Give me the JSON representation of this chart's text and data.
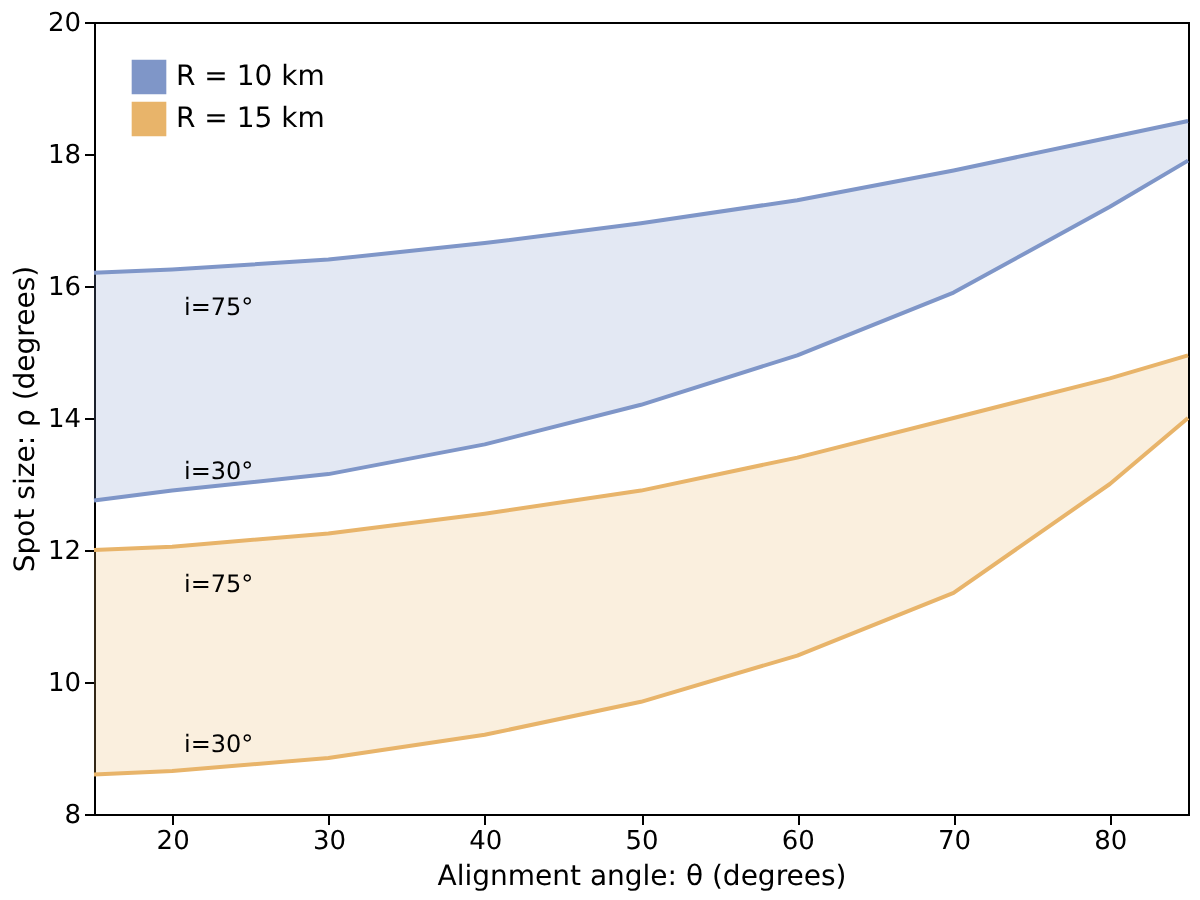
{
  "chart_data": {
    "type": "line",
    "xlabel": "Alignment angle: θ (degrees)",
    "ylabel": "Spot size: ρ (degrees)",
    "x": [
      15,
      20,
      30,
      40,
      50,
      60,
      70,
      80,
      85
    ],
    "series": [
      {
        "name": "R = 10 km",
        "color": "#7f96c8",
        "values": [
          16.2,
          16.25,
          16.4,
          16.65,
          16.95,
          17.3,
          17.75,
          18.25,
          18.5
        ],
        "lower": [
          12.75,
          12.9,
          13.15,
          13.6,
          14.2,
          14.95,
          15.9,
          17.2,
          17.9
        ],
        "upper": [
          16.2,
          16.25,
          16.4,
          16.65,
          16.95,
          17.3,
          17.75,
          18.25,
          18.5
        ]
      },
      {
        "color": "#7f96c8",
        "values": [
          12.75,
          12.9,
          13.15,
          13.6,
          14.2,
          14.95,
          15.9,
          17.2,
          17.9
        ]
      },
      {
        "name": "R = 15 km",
        "color": "#e8b46a",
        "values": [
          12.0,
          12.05,
          12.25,
          12.55,
          12.9,
          13.4,
          14.0,
          14.6,
          14.95
        ],
        "lower": [
          8.6,
          8.65,
          8.85,
          9.2,
          9.7,
          10.4,
          11.35,
          13.0,
          14.0
        ],
        "upper": [
          12.0,
          12.05,
          12.25,
          12.55,
          12.9,
          13.4,
          14.0,
          14.6,
          14.95
        ]
      },
      {
        "color": "#e8b46a",
        "values": [
          8.6,
          8.65,
          8.85,
          9.2,
          9.7,
          10.4,
          11.35,
          13.0,
          14.0
        ]
      }
    ],
    "annotations": [
      "i=75°",
      "i=30°",
      "i=75°",
      "i=30°"
    ],
    "xlim": [
      15,
      85
    ],
    "xticks": [
      20,
      30,
      40,
      50,
      60,
      70,
      80
    ],
    "ylim": [
      8,
      20
    ],
    "yticks": [
      8,
      10,
      12,
      14,
      16,
      18,
      20
    ],
    "grid": false,
    "legend": "top left",
    "marker": "none",
    "line_style": "solid"
  }
}
